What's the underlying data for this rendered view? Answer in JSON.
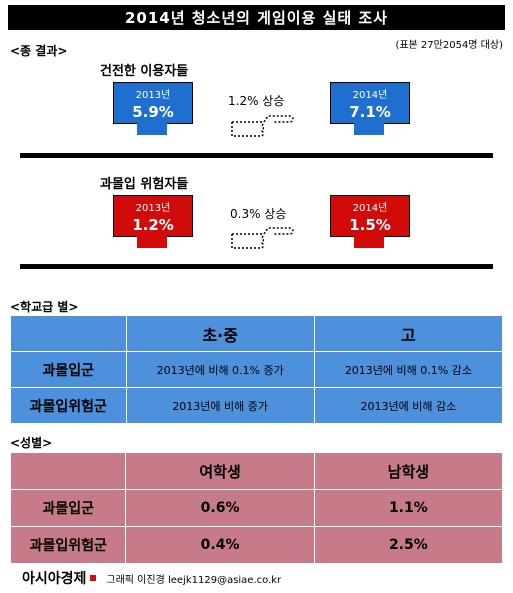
{
  "title": "2014년 청소년의 게임이용 실태 조사",
  "sample_note": "(표본 27만2054명 대상)",
  "overall": {
    "section_label": "<종 결과>",
    "groups": [
      {
        "label": "건전한 이용자들",
        "year_a": "2013년",
        "value_a": "5.9%",
        "year_b": "2014년",
        "value_b": "7.1%",
        "change": "1.2% 상승"
      },
      {
        "label": "과몰입 위험자들",
        "year_a": "2013년",
        "value_a": "1.2%",
        "year_b": "2014년",
        "value_b": "1.5%",
        "change": "0.3% 상승"
      }
    ]
  },
  "school": {
    "section_label": "<학교급 별>",
    "columns": [
      "초·중",
      "고"
    ],
    "rows": [
      {
        "label": "과몰입군",
        "cells": [
          "2013년에 비해 0.1% 증가",
          "2013년에 비해 0.1% 감소"
        ]
      },
      {
        "label": "과몰입위험군",
        "cells": [
          "2013년에 비해 증가",
          "2013년에 비해 감소"
        ]
      }
    ]
  },
  "gender": {
    "section_label": "<성별>",
    "columns": [
      "여학생",
      "남학생"
    ],
    "rows": [
      {
        "label": "과몰입군",
        "cells": [
          "0.6%",
          "1.1%"
        ]
      },
      {
        "label": "과몰입위험군",
        "cells": [
          "0.4%",
          "2.5%"
        ]
      }
    ]
  },
  "footer": {
    "brand": "아시아경제",
    "credit": "그래픽 이진경 leejk1129@asiae.co.kr"
  },
  "colors": {
    "blue": "#1f6fd1",
    "red": "#d10a0a",
    "school_table": "#4d90dc",
    "gender_table": "#c77b89"
  },
  "chart_data": [
    {
      "type": "bar",
      "title": "건전한 이용자들",
      "categories": [
        "2013년",
        "2014년"
      ],
      "values": [
        5.9,
        7.1
      ],
      "annotations": [
        "1.2% 상승"
      ]
    },
    {
      "type": "bar",
      "title": "과몰입 위험자들",
      "categories": [
        "2013년",
        "2014년"
      ],
      "values": [
        1.2,
        1.5
      ],
      "annotations": [
        "0.3% 상승"
      ]
    },
    {
      "type": "table",
      "columns": [
        "초·중",
        "고"
      ],
      "rows": [
        {
          "label": "과몰입군",
          "cells": [
            "2013년에 비해 0.1% 증가",
            "2013년에 비해 0.1% 감소"
          ]
        },
        {
          "label": "과몰입위험군",
          "cells": [
            "2013년에 비해 증가",
            "2013년에 비해 감소"
          ]
        }
      ]
    },
    {
      "type": "table",
      "columns": [
        "여학생",
        "남학생"
      ],
      "rows": [
        {
          "label": "과몰입군",
          "cells": [
            "0.6%",
            "1.1%"
          ]
        },
        {
          "label": "과몰입위험군",
          "cells": [
            "0.4%",
            "2.5%"
          ]
        }
      ]
    }
  ]
}
